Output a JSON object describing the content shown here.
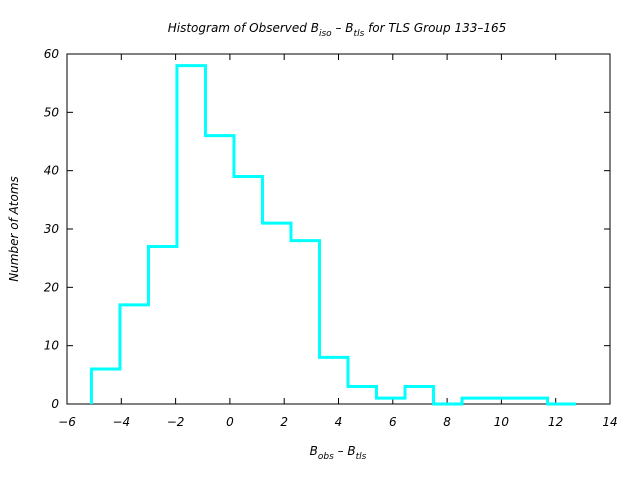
{
  "chart_data": {
    "type": "bar",
    "style": "histogram-step",
    "title": {
      "prefix": "Histogram of Observed B",
      "sub1": "iso",
      "middle": " – B",
      "sub2": "tls",
      "suffix": " for TLS Group 133–165"
    },
    "xlabel": {
      "main1": "B",
      "sub1": "obs",
      "middle": " – B",
      "sub2": "tls"
    },
    "ylabel": "Number of Atoms",
    "xlim": [
      -6,
      14
    ],
    "ylim": [
      0,
      60
    ],
    "xticks": [
      -6,
      -4,
      -2,
      0,
      2,
      4,
      6,
      8,
      10,
      12,
      14
    ],
    "yticks": [
      0,
      10,
      20,
      30,
      40,
      50,
      60
    ],
    "xtick_labels": [
      "−6",
      "−4",
      "−2",
      "0",
      "2",
      "4",
      "6",
      "8",
      "10",
      "12",
      "14"
    ],
    "ytick_labels": [
      "0",
      "10",
      "20",
      "30",
      "40",
      "50",
      "60"
    ],
    "bin_edges": [
      -5.1,
      -4.05,
      -3.0,
      -1.95,
      -0.9,
      0.15,
      1.2,
      2.25,
      3.3,
      4.35,
      5.4,
      6.45,
      7.5,
      8.55,
      9.6,
      10.65,
      11.7,
      12.75
    ],
    "counts": [
      6,
      17,
      27,
      58,
      46,
      39,
      31,
      28,
      8,
      3,
      1,
      3,
      0,
      1,
      1,
      1,
      0
    ],
    "color": "#00ffff",
    "grid": false,
    "legend": "none"
  }
}
